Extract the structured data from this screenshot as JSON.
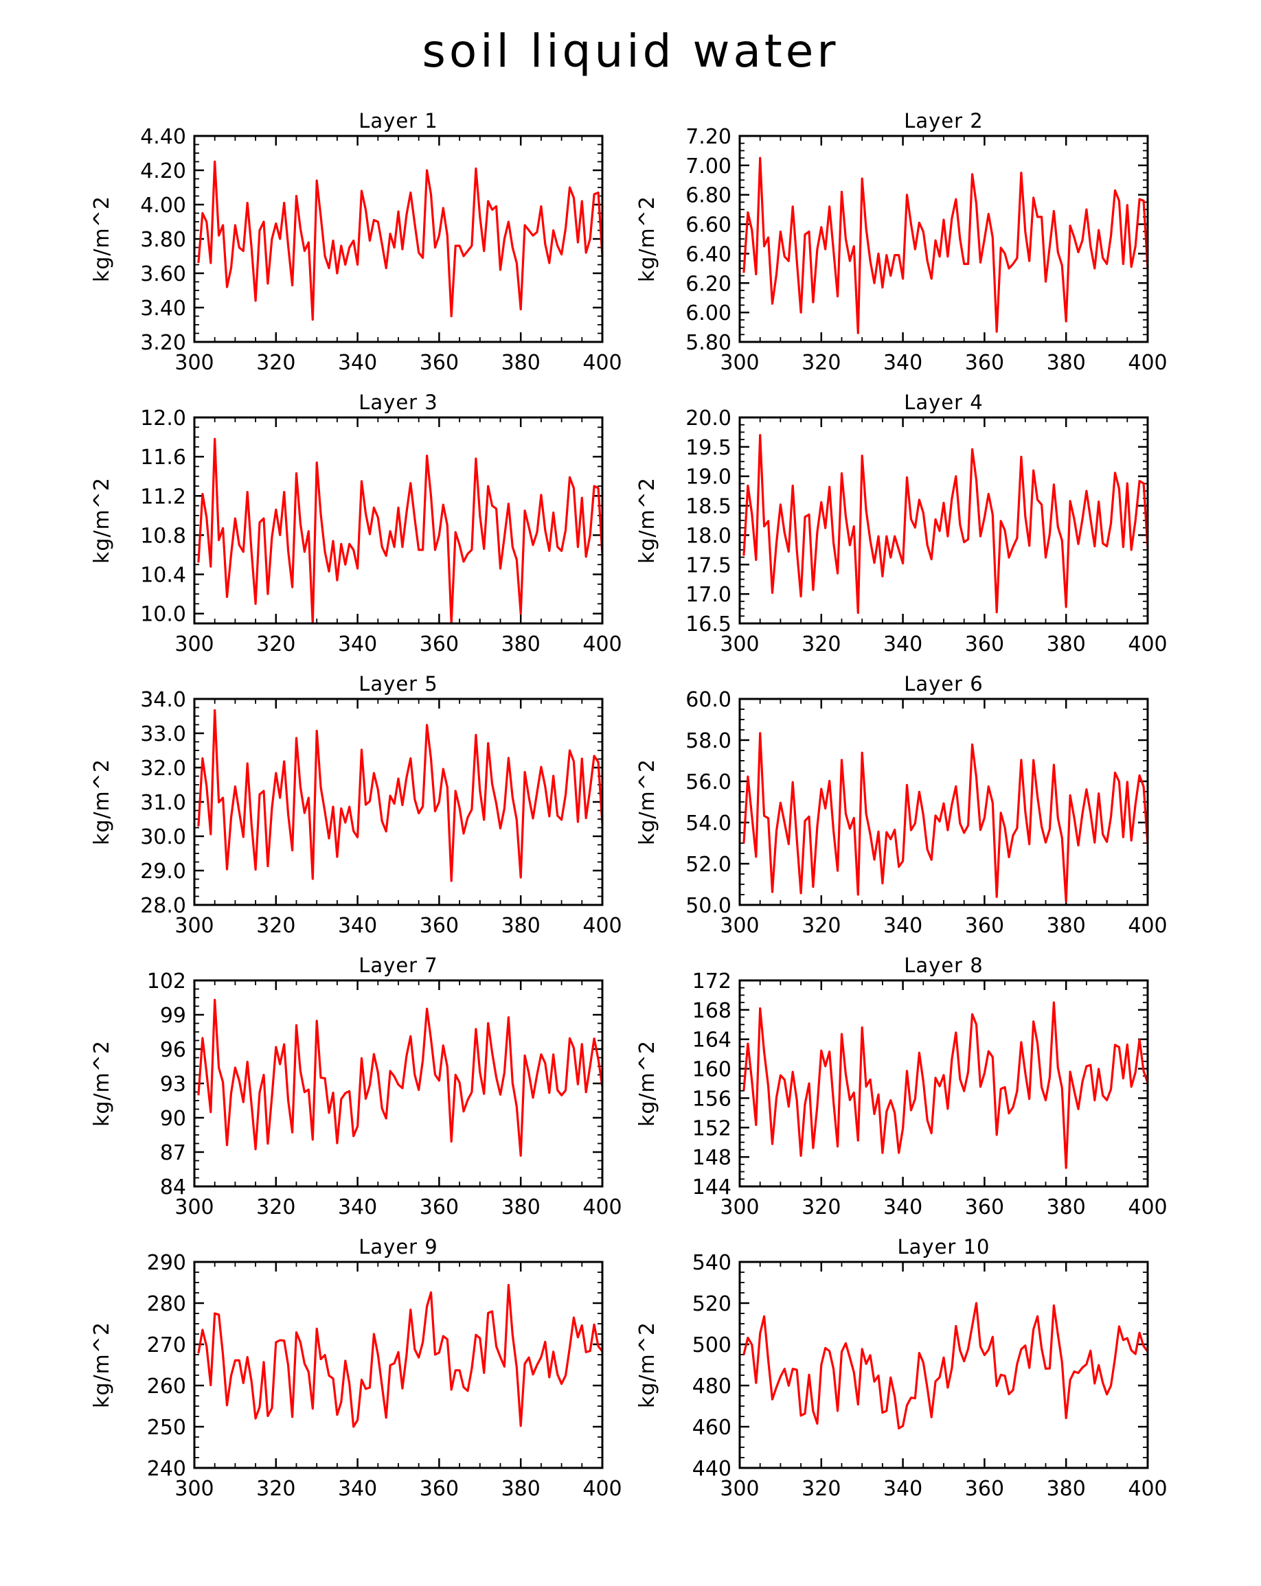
{
  "title": "soil liquid water",
  "chart_data": [
    {
      "type": "line",
      "title": "Layer 1",
      "ylabel": "kg/m^2",
      "xlim": [
        300,
        400
      ],
      "ylim": [
        3.2,
        4.4
      ],
      "xticks": [
        "300",
        "320",
        "340",
        "360",
        "380",
        "400"
      ],
      "yticks": [
        "3.20",
        "3.40",
        "3.60",
        "3.80",
        "4.00",
        "4.20",
        "4.40"
      ],
      "color": "#ff0000",
      "x_start": 301,
      "values": [
        3.66,
        3.95,
        3.9,
        3.66,
        4.25,
        3.82,
        3.88,
        3.52,
        3.63,
        3.88,
        3.75,
        3.73,
        4.01,
        3.75,
        3.44,
        3.85,
        3.9,
        3.54,
        3.8,
        3.89,
        3.8,
        4.01,
        3.76,
        3.53,
        4.05,
        3.86,
        3.73,
        3.78,
        3.33,
        4.14,
        3.93,
        3.7,
        3.63,
        3.79,
        3.6,
        3.76,
        3.65,
        3.75,
        3.79,
        3.65,
        4.08,
        3.97,
        3.79,
        3.91,
        3.9,
        3.77,
        3.63,
        3.83,
        3.75,
        3.96,
        3.74,
        3.94,
        4.07,
        3.89,
        3.72,
        3.69,
        4.2,
        4.06,
        3.75,
        3.82,
        3.98,
        3.82,
        3.35,
        3.76,
        3.76,
        3.7,
        3.73,
        3.76,
        4.21,
        3.93,
        3.73,
        4.02,
        3.97,
        3.99,
        3.62,
        3.8,
        3.9,
        3.75,
        3.66,
        3.39,
        3.88,
        3.85,
        3.82,
        3.84,
        3.99,
        3.77,
        3.66,
        3.85,
        3.76,
        3.71,
        3.86,
        4.1,
        4.04,
        3.78,
        4.02,
        3.72,
        3.8,
        4.06,
        4.07,
        3.7
      ]
    },
    {
      "type": "line",
      "title": "Layer 2",
      "ylabel": "kg/m^2",
      "xlim": [
        300,
        400
      ],
      "ylim": [
        5.8,
        7.2
      ],
      "xticks": [
        "300",
        "320",
        "340",
        "360",
        "380",
        "400"
      ],
      "yticks": [
        "5.80",
        "6.00",
        "6.20",
        "6.40",
        "6.60",
        "6.80",
        "7.00",
        "7.20"
      ],
      "color": "#ff0000",
      "x_start": 301,
      "values": [
        6.27,
        6.68,
        6.56,
        6.26,
        7.05,
        6.45,
        6.51,
        6.06,
        6.26,
        6.55,
        6.38,
        6.35,
        6.72,
        6.35,
        6.0,
        6.53,
        6.55,
        6.07,
        6.43,
        6.58,
        6.43,
        6.72,
        6.42,
        6.11,
        6.82,
        6.5,
        6.35,
        6.45,
        5.86,
        6.91,
        6.57,
        6.35,
        6.2,
        6.4,
        6.17,
        6.39,
        6.25,
        6.39,
        6.39,
        6.23,
        6.8,
        6.6,
        6.43,
        6.61,
        6.55,
        6.35,
        6.23,
        6.49,
        6.38,
        6.63,
        6.38,
        6.64,
        6.77,
        6.5,
        6.33,
        6.33,
        6.94,
        6.74,
        6.34,
        6.5,
        6.67,
        6.51,
        5.87,
        6.44,
        6.4,
        6.3,
        6.33,
        6.37,
        6.95,
        6.55,
        6.35,
        6.78,
        6.65,
        6.65,
        6.21,
        6.45,
        6.69,
        6.41,
        6.32,
        5.94,
        6.59,
        6.51,
        6.41,
        6.49,
        6.7,
        6.45,
        6.3,
        6.56,
        6.37,
        6.33,
        6.52,
        6.83,
        6.76,
        6.33,
        6.73,
        6.31,
        6.45,
        6.77,
        6.76,
        6.3
      ]
    },
    {
      "type": "line",
      "title": "Layer 3",
      "ylabel": "kg/m^2",
      "xlim": [
        300,
        400
      ],
      "ylim": [
        9.9,
        12.0
      ],
      "xticks": [
        "300",
        "320",
        "340",
        "360",
        "380",
        "400"
      ],
      "yticks": [
        "10.0",
        "10.4",
        "10.8",
        "11.2",
        "11.6",
        "12.0"
      ],
      "color": "#ff0000",
      "x_start": 301,
      "values": [
        10.52,
        11.22,
        10.98,
        10.48,
        11.78,
        10.75,
        10.87,
        10.17,
        10.6,
        10.97,
        10.7,
        10.63,
        11.24,
        10.63,
        10.1,
        10.93,
        10.97,
        10.2,
        10.78,
        11.06,
        10.8,
        11.24,
        10.64,
        10.27,
        11.43,
        10.92,
        10.63,
        10.84,
        9.88,
        11.54,
        11.01,
        10.63,
        10.43,
        10.74,
        10.34,
        10.71,
        10.5,
        10.71,
        10.65,
        10.46,
        11.35,
        11.02,
        10.81,
        11.08,
        10.98,
        10.68,
        10.59,
        10.84,
        10.68,
        11.08,
        10.68,
        11.03,
        11.33,
        10.97,
        10.65,
        10.65,
        11.61,
        11.2,
        10.65,
        10.8,
        11.11,
        10.9,
        9.9,
        10.83,
        10.7,
        10.53,
        10.61,
        10.65,
        11.58,
        11.0,
        10.66,
        11.3,
        11.1,
        11.07,
        10.46,
        10.78,
        11.12,
        10.68,
        10.55,
        10.0,
        11.05,
        10.88,
        10.7,
        10.83,
        11.21,
        10.85,
        10.64,
        11.03,
        10.68,
        10.64,
        10.85,
        11.39,
        11.28,
        10.68,
        11.18,
        10.58,
        10.8,
        11.3,
        11.28,
        10.6
      ]
    },
    {
      "type": "line",
      "title": "Layer 4",
      "ylabel": "kg/m^2",
      "xlim": [
        300,
        400
      ],
      "ylim": [
        16.5,
        20.0
      ],
      "xticks": [
        "300",
        "320",
        "340",
        "360",
        "380",
        "400"
      ],
      "yticks": [
        "16.5",
        "17.0",
        "17.5",
        "18.0",
        "18.5",
        "19.0",
        "19.5",
        "20.0"
      ],
      "color": "#ff0000",
      "x_start": 301,
      "values": [
        17.65,
        18.84,
        18.36,
        17.58,
        19.7,
        18.15,
        18.24,
        17.02,
        17.87,
        18.52,
        18.04,
        17.72,
        18.84,
        17.74,
        16.96,
        18.31,
        18.35,
        17.07,
        18.05,
        18.56,
        18.12,
        18.82,
        17.87,
        17.35,
        19.05,
        18.32,
        17.83,
        18.15,
        16.68,
        19.35,
        18.42,
        17.91,
        17.53,
        17.98,
        17.3,
        17.98,
        17.62,
        17.98,
        17.75,
        17.52,
        18.98,
        18.27,
        18.13,
        18.6,
        18.38,
        17.83,
        17.59,
        18.27,
        18.07,
        18.55,
        17.98,
        18.62,
        19.0,
        18.18,
        17.88,
        17.93,
        19.46,
        18.94,
        17.98,
        18.3,
        18.7,
        18.35,
        16.69,
        18.24,
        18.08,
        17.62,
        17.8,
        17.95,
        19.33,
        18.32,
        17.82,
        19.1,
        18.6,
        18.52,
        17.62,
        18.02,
        18.86,
        18.14,
        17.91,
        16.78,
        18.58,
        18.27,
        17.85,
        18.27,
        18.75,
        18.28,
        17.81,
        18.57,
        17.86,
        17.81,
        18.2,
        19.06,
        18.79,
        17.8,
        18.88,
        17.75,
        18.25,
        18.92,
        18.88,
        17.79
      ]
    },
    {
      "type": "line",
      "title": "Layer 5",
      "ylabel": "kg/m^2",
      "xlim": [
        300,
        400
      ],
      "ylim": [
        28.0,
        34.0
      ],
      "xticks": [
        "300",
        "320",
        "340",
        "360",
        "380",
        "400"
      ],
      "yticks": [
        "28.0",
        "29.0",
        "30.0",
        "31.0",
        "32.0",
        "33.0",
        "34.0"
      ],
      "color": "#ff0000",
      "x_start": 301,
      "values": [
        30.29,
        32.27,
        31.46,
        30.06,
        33.67,
        30.99,
        31.12,
        29.04,
        30.54,
        31.45,
        30.71,
        29.98,
        32.12,
        30.35,
        29.03,
        31.22,
        31.32,
        29.13,
        30.82,
        31.84,
        31.12,
        32.18,
        30.64,
        29.59,
        32.86,
        31.44,
        30.68,
        31.12,
        28.76,
        33.07,
        31.42,
        30.71,
        29.94,
        30.86,
        29.4,
        30.81,
        30.4,
        30.86,
        30.15,
        29.97,
        32.52,
        30.92,
        31.02,
        31.84,
        31.36,
        30.44,
        30.14,
        31.18,
        30.95,
        31.68,
        30.91,
        31.71,
        32.27,
        31.08,
        30.67,
        30.87,
        33.24,
        32.26,
        30.73,
        31.0,
        31.96,
        31.43,
        28.7,
        31.32,
        30.83,
        30.08,
        30.55,
        30.78,
        32.95,
        31.33,
        30.48,
        32.71,
        31.52,
        30.95,
        30.23,
        30.81,
        32.28,
        31.13,
        30.48,
        28.8,
        31.87,
        31.13,
        30.52,
        31.28,
        32.02,
        31.45,
        30.58,
        31.76,
        30.6,
        30.48,
        31.2,
        32.5,
        32.18,
        30.42,
        32.26,
        30.53,
        31.38,
        32.34,
        32.16,
        30.36
      ]
    },
    {
      "type": "line",
      "title": "Layer 6",
      "ylabel": "kg/m^2",
      "xlim": [
        300,
        400
      ],
      "ylim": [
        50.0,
        60.0
      ],
      "xticks": [
        "300",
        "320",
        "340",
        "360",
        "380",
        "400"
      ],
      "yticks": [
        "50.0",
        "52.0",
        "54.0",
        "56.0",
        "58.0",
        "60.0"
      ],
      "color": "#ff0000",
      "x_start": 301,
      "values": [
        53.0,
        56.23,
        54.3,
        52.34,
        58.34,
        54.32,
        54.21,
        50.63,
        53.59,
        54.96,
        53.99,
        52.95,
        55.96,
        53.18,
        50.57,
        54.08,
        54.29,
        50.88,
        53.8,
        55.63,
        54.68,
        56.02,
        53.6,
        51.66,
        57.04,
        54.43,
        53.7,
        54.22,
        50.5,
        57.39,
        54.43,
        53.43,
        52.2,
        53.56,
        51.05,
        53.53,
        53.19,
        53.65,
        51.85,
        52.13,
        55.82,
        53.63,
        53.96,
        55.49,
        54.37,
        52.69,
        52.19,
        54.34,
        54.05,
        54.93,
        53.63,
        54.88,
        55.76,
        53.96,
        53.5,
        53.86,
        57.79,
        56.2,
        53.64,
        54.23,
        55.75,
        54.96,
        50.39,
        54.47,
        53.75,
        52.32,
        53.38,
        53.73,
        57.04,
        54.54,
        52.95,
        57.03,
        55.25,
        53.8,
        53.03,
        53.68,
        56.8,
        54.22,
        53.26,
        50.16,
        55.32,
        54.22,
        52.89,
        54.43,
        55.61,
        54.47,
        53.03,
        55.41,
        53.42,
        53.06,
        54.27,
        56.42,
        55.99,
        53.29,
        55.97,
        53.13,
        54.89,
        56.29,
        55.74,
        52.97
      ]
    },
    {
      "type": "line",
      "title": "Layer 7",
      "ylabel": "kg/m^2",
      "xlim": [
        300,
        400
      ],
      "ylim": [
        84,
        102
      ],
      "xticks": [
        "300",
        "320",
        "340",
        "360",
        "380",
        "400"
      ],
      "yticks": [
        "84",
        "87",
        "90",
        "93",
        "96",
        "99",
        "102"
      ],
      "color": "#ff0000",
      "x_start": 301,
      "values": [
        91.96,
        96.96,
        93.92,
        90.5,
        100.3,
        94.37,
        93.11,
        87.61,
        92.15,
        94.38,
        93.25,
        91.37,
        94.89,
        91.15,
        87.25,
        92.21,
        93.75,
        87.74,
        91.83,
        96.18,
        94.68,
        96.42,
        91.52,
        88.72,
        98.09,
        94.08,
        92.24,
        92.46,
        88.09,
        98.47,
        93.5,
        93.45,
        90.43,
        92.19,
        87.78,
        91.63,
        92.15,
        92.32,
        88.4,
        89.25,
        95.2,
        91.66,
        92.85,
        95.56,
        93.96,
        90.81,
        89.94,
        94.08,
        93.61,
        92.9,
        92.59,
        95.41,
        97.12,
        93.77,
        92.43,
        95.03,
        99.53,
        96.87,
        93.77,
        93.24,
        96.32,
        94.47,
        87.92,
        93.75,
        93.08,
        90.55,
        91.56,
        92.23,
        97.75,
        93.98,
        92.09,
        98.27,
        95.68,
        93.52,
        92.02,
        93.94,
        98.78,
        93.04,
        90.97,
        86.69,
        95.44,
        93.86,
        91.75,
        93.79,
        95.54,
        94.77,
        92.18,
        95.53,
        92.41,
        91.96,
        92.39,
        96.94,
        96.11,
        92.93,
        96.44,
        92.24,
        94.53,
        96.92,
        95.12,
        92.72
      ]
    },
    {
      "type": "line",
      "title": "Layer 8",
      "ylabel": "kg/m^2",
      "xlim": [
        300,
        400
      ],
      "ylim": [
        144,
        172
      ],
      "xticks": [
        "300",
        "320",
        "340",
        "360",
        "380",
        "400"
      ],
      "yticks": [
        "144",
        "148",
        "152",
        "156",
        "160",
        "164",
        "168",
        "172"
      ],
      "color": "#ff0000",
      "x_start": 301,
      "values": [
        157.05,
        163.4,
        158.32,
        152.36,
        168.2,
        162.29,
        157.61,
        149.78,
        156.09,
        159.1,
        158.5,
        154.85,
        159.57,
        155.73,
        148.16,
        155.17,
        158.0,
        149.23,
        154.88,
        162.46,
        160.34,
        162.32,
        155.47,
        149.43,
        164.71,
        159.27,
        155.74,
        156.75,
        150.24,
        165.61,
        157.57,
        158.53,
        153.85,
        156.5,
        148.55,
        154.16,
        155.71,
        154.0,
        148.56,
        151.89,
        159.7,
        154.36,
        155.89,
        162.16,
        158.28,
        152.99,
        151.23,
        158.77,
        157.62,
        159.13,
        154.56,
        161.28,
        164.92,
        158.6,
        156.96,
        159.57,
        167.41,
        166.02,
        157.55,
        159.39,
        162.38,
        161.58,
        151.01,
        157.25,
        157.49,
        153.93,
        154.77,
        156.96,
        163.6,
        159.44,
        155.89,
        166.43,
        163.45,
        157.49,
        155.71,
        158.82,
        169.0,
        160.16,
        157.37,
        146.52,
        159.59,
        156.96,
        154.52,
        158.22,
        160.33,
        160.5,
        155.71,
        159.97,
        156.35,
        155.73,
        157.2,
        163.24,
        162.93,
        158.69,
        163.29,
        157.55,
        159.51,
        163.95,
        159.67,
        158.1
      ]
    },
    {
      "type": "line",
      "title": "Layer 9",
      "ylabel": "kg/m^2",
      "xlim": [
        300,
        400
      ],
      "ylim": [
        240,
        290
      ],
      "xticks": [
        "300",
        "320",
        "340",
        "360",
        "380",
        "400"
      ],
      "yticks": [
        "240",
        "250",
        "260",
        "270",
        "280",
        "290"
      ],
      "color": "#ff0000",
      "x_start": 301,
      "values": [
        267.8,
        273.5,
        269.5,
        260.1,
        277.5,
        277.2,
        267.5,
        255.2,
        262.4,
        266.1,
        266.1,
        260.6,
        266.9,
        261.0,
        252.0,
        254.8,
        265.7,
        252.6,
        254.5,
        270.5,
        271.0,
        270.9,
        264.9,
        252.4,
        272.9,
        270.5,
        265.3,
        263.3,
        254.4,
        273.8,
        266.4,
        267.4,
        262.4,
        261.7,
        252.9,
        256.0,
        266.0,
        260.5,
        250.0,
        251.6,
        261.4,
        259.2,
        259.5,
        272.5,
        267.5,
        259.9,
        252.2,
        264.9,
        265.4,
        268.1,
        259.3,
        267.4,
        278.4,
        268.8,
        266.8,
        270.5,
        279.2,
        282.6,
        267.5,
        268.0,
        272.0,
        271.2,
        259.0,
        263.7,
        263.7,
        259.6,
        258.7,
        264.1,
        272.3,
        271.5,
        263.1,
        277.6,
        278.0,
        269.5,
        266.9,
        264.6,
        284.4,
        272.3,
        264.4,
        250.2,
        265.3,
        266.8,
        262.7,
        265.0,
        266.9,
        270.6,
        262.0,
        268.2,
        262.7,
        260.4,
        262.4,
        269.2,
        276.5,
        271.7,
        274.6,
        268.1,
        268.4,
        274.8,
        269.5,
        268.3
      ]
    },
    {
      "type": "line",
      "title": "Layer 10",
      "ylabel": "kg/m^2",
      "xlim": [
        300,
        400
      ],
      "ylim": [
        440,
        540
      ],
      "xticks": [
        "300",
        "320",
        "340",
        "360",
        "380",
        "400"
      ],
      "yticks": [
        "440",
        "460",
        "480",
        "500",
        "520",
        "540"
      ],
      "color": "#ff0000",
      "x_start": 301,
      "values": [
        495.0,
        503.2,
        499.8,
        481.3,
        505.3,
        513.6,
        492.2,
        473.3,
        479.2,
        484.3,
        488.1,
        479.9,
        488.1,
        487.6,
        465.4,
        466.4,
        485.2,
        467.6,
        461.5,
        490.1,
        498.2,
        496.7,
        488.0,
        467.7,
        496.4,
        500.5,
        493.5,
        486.4,
        470.8,
        497.7,
        490.5,
        494.7,
        481.9,
        484.8,
        466.8,
        467.7,
        483.9,
        474.8,
        459.2,
        460.4,
        470.4,
        474.1,
        473.8,
        495.8,
        491.2,
        478.8,
        464.6,
        482.0,
        484.0,
        493.6,
        479.0,
        488.4,
        508.9,
        497.0,
        491.8,
        497.8,
        509.0,
        520.0,
        498.9,
        494.8,
        497.4,
        503.6,
        479.8,
        485.2,
        484.7,
        475.8,
        477.8,
        490.5,
        497.6,
        499.4,
        488.6,
        507.3,
        513.6,
        498.0,
        488.2,
        488.3,
        518.9,
        504.8,
        491.3,
        464.2,
        482.7,
        486.8,
        486.1,
        488.7,
        490.3,
        496.9,
        481.0,
        489.9,
        481.3,
        475.7,
        479.9,
        493.4,
        508.7,
        502.1,
        503.0,
        497.1,
        495.3,
        505.6,
        499.1,
        496.5
      ]
    }
  ]
}
